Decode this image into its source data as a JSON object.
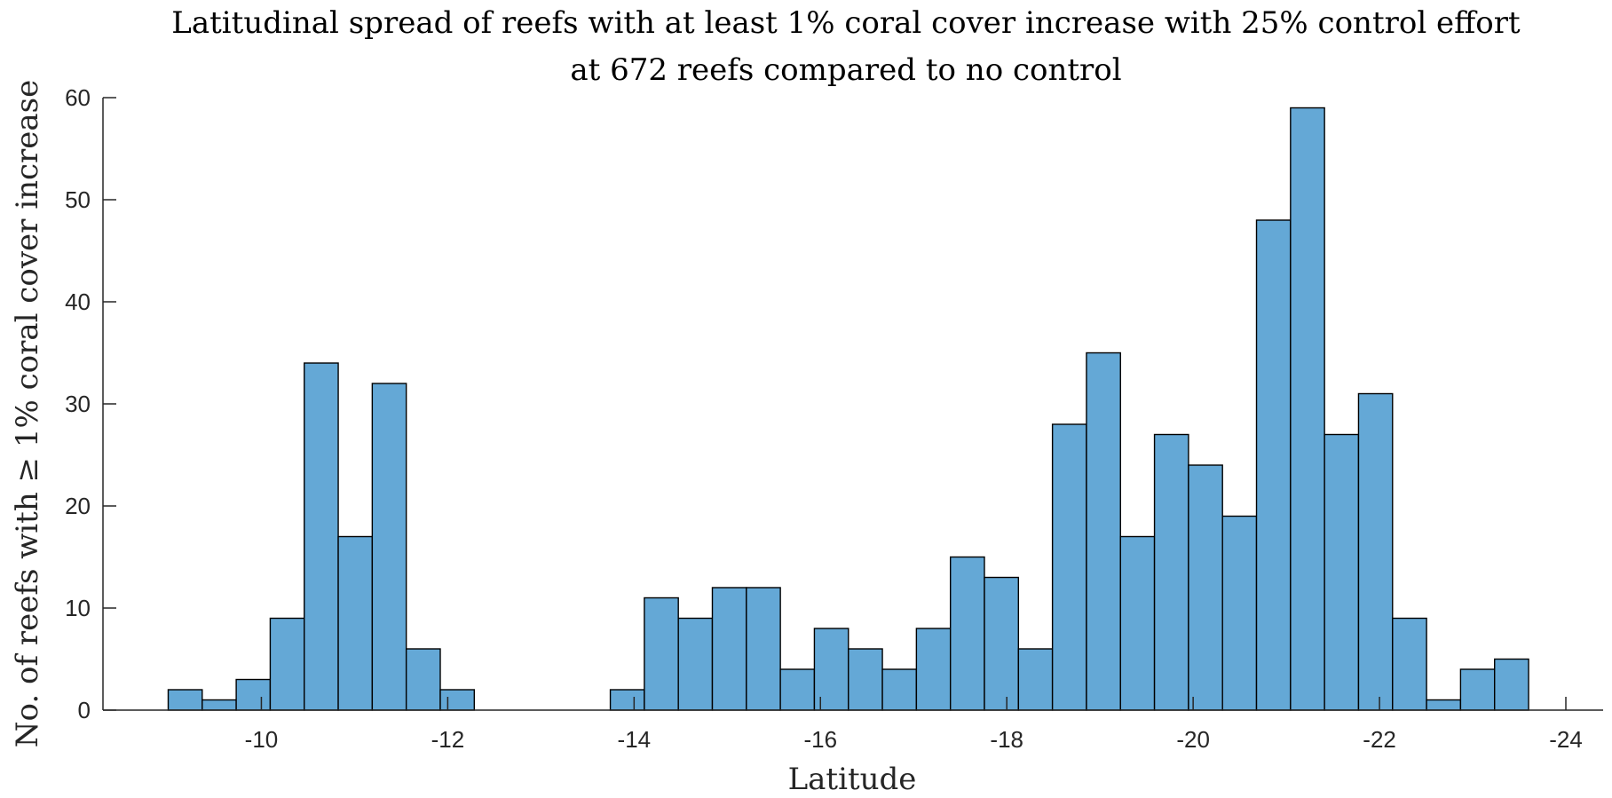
{
  "chart_data": {
    "type": "bar",
    "title_lines": [
      "Latitudinal spread of reefs with at least 1% coral cover increase with 25% control effort",
      "at 672 reefs compared to no control"
    ],
    "xlabel": "Latitude",
    "ylabel": "No. of reefs with ≥ 1% coral cover increase",
    "x_tick_values": [
      -10,
      -12,
      -14,
      -16,
      -18,
      -20,
      -22,
      -24
    ],
    "x_tick_labels": [
      "-10",
      "-12",
      "-14",
      "-16",
      "-18",
      "-20",
      "-22",
      "-24"
    ],
    "y_tick_values": [
      0,
      10,
      20,
      30,
      40,
      50,
      60
    ],
    "y_tick_labels": [
      "0",
      "10",
      "20",
      "30",
      "40",
      "50",
      "60"
    ],
    "xlim": [
      -8.3,
      -24.4
    ],
    "ylim": [
      0,
      60
    ],
    "x_reversed": true,
    "bin_width": 0.365,
    "bin_edges_start": -9.0,
    "values": [
      2,
      1,
      3,
      9,
      34,
      17,
      32,
      6,
      2,
      0,
      0,
      0,
      0,
      2,
      11,
      9,
      12,
      12,
      4,
      8,
      6,
      4,
      8,
      15,
      13,
      6,
      28,
      35,
      17,
      27,
      24,
      19,
      48,
      59,
      27,
      31,
      9,
      1,
      4,
      5
    ],
    "bar_color": "#64a8d6",
    "edge_color": "#000000",
    "grid": false,
    "legend": "none"
  }
}
